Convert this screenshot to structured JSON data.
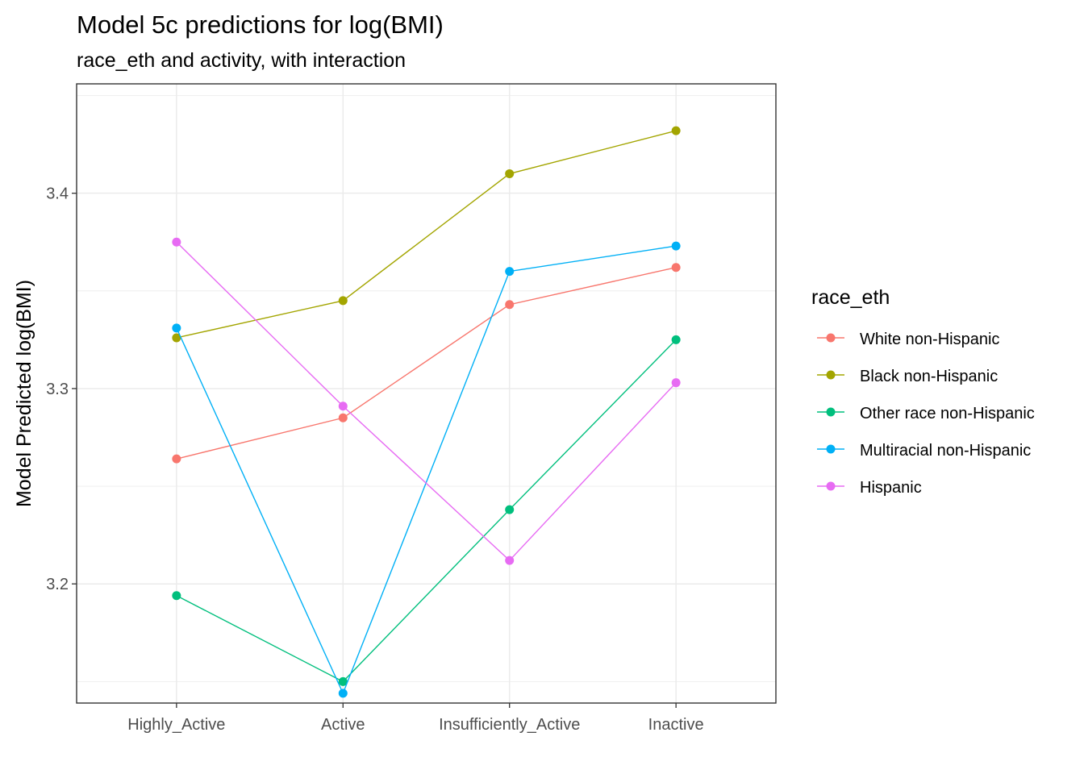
{
  "chart_data": {
    "type": "line",
    "title": "Model 5c predictions for log(BMI)",
    "subtitle": "race_eth and activity, with interaction",
    "xlabel": "",
    "ylabel": "Model Predicted log(BMI)",
    "categories": [
      "Highly_Active",
      "Active",
      "Insufficiently_Active",
      "Inactive"
    ],
    "ylim": [
      3.139,
      3.456
    ],
    "yticks": [
      3.2,
      3.3,
      3.4
    ],
    "ytick_labels": [
      "3.2",
      "3.3",
      "3.4"
    ],
    "grid": true,
    "legend": {
      "title": "race_eth",
      "position": "right"
    },
    "series": [
      {
        "name": "White non-Hispanic",
        "color": "#F8766D",
        "values": [
          3.264,
          3.285,
          3.343,
          3.362
        ]
      },
      {
        "name": "Black non-Hispanic",
        "color": "#A3A500",
        "values": [
          3.326,
          3.345,
          3.41,
          3.432
        ]
      },
      {
        "name": "Other race non-Hispanic",
        "color": "#00BF7D",
        "values": [
          3.194,
          3.15,
          3.238,
          3.325
        ]
      },
      {
        "name": "Multiracial non-Hispanic",
        "color": "#00B0F6",
        "values": [
          3.331,
          3.144,
          3.36,
          3.373
        ]
      },
      {
        "name": "Hispanic",
        "color": "#E76BF3",
        "values": [
          3.375,
          3.291,
          3.212,
          3.303
        ]
      }
    ]
  }
}
